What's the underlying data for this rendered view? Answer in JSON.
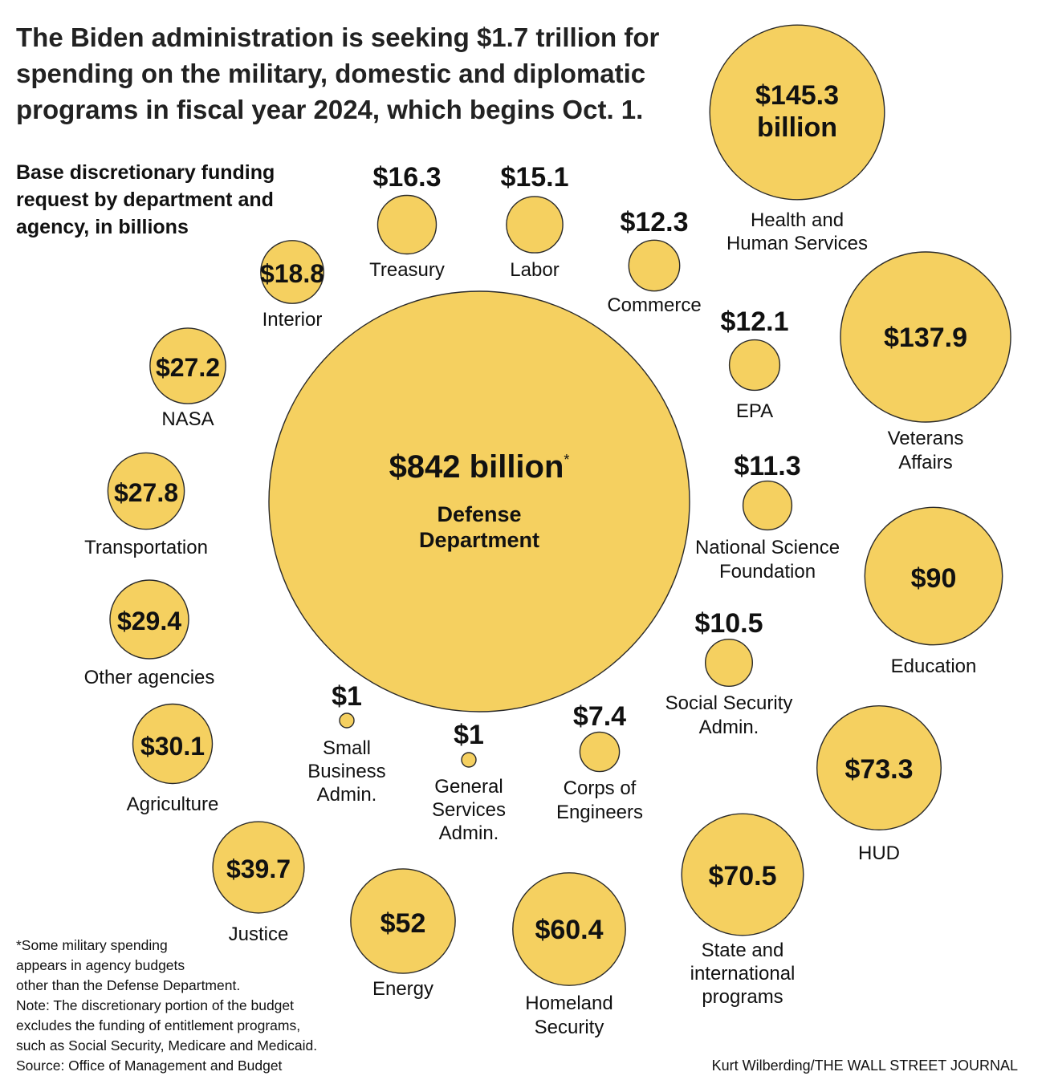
{
  "headline": "The Biden administration is seeking $1.7 trillion for spending on the military, domestic and diplomatic programs in fiscal year 2024, which begins Oct. 1.",
  "subhead": "Base discretionary funding request by department and agency, in billions",
  "footnote": [
    "*Some military spending",
    "appears in agency budgets",
    "other than the Defense Department.",
    "Note: The discretionary portion of the budget",
    "excludes the funding of entitlement programs,",
    "such as Social Security, Medicare and Medicaid.",
    "Source: Office of Management and Budget"
  ],
  "credit": "Kurt Wilberding/THE WALL STREET JOURNAL",
  "colors": {
    "bubble_fill": "#f5d060",
    "bubble_stroke": "#2a2a2a",
    "text": "#111111"
  },
  "chart_data": {
    "type": "bubble",
    "unit": "billions of dollars",
    "bubbles": [
      {
        "name": "Defense Department",
        "value": 842,
        "value_label": "$842 billion",
        "label_lines": [
          "Defense",
          "Department"
        ],
        "footnote_marker": "*"
      },
      {
        "name": "Health and Human Services",
        "value": 145.3,
        "value_label": "$145.3 billion",
        "label_lines": [
          "Health and",
          "Human Services"
        ]
      },
      {
        "name": "Veterans Affairs",
        "value": 137.9,
        "value_label": "$137.9",
        "label_lines": [
          "Veterans",
          "Affairs"
        ]
      },
      {
        "name": "Education",
        "value": 90,
        "value_label": "$90",
        "label_lines": [
          "Education"
        ]
      },
      {
        "name": "HUD",
        "value": 73.3,
        "value_label": "$73.3",
        "label_lines": [
          "HUD"
        ]
      },
      {
        "name": "State and international programs",
        "value": 70.5,
        "value_label": "$70.5",
        "label_lines": [
          "State and",
          "international",
          "programs"
        ]
      },
      {
        "name": "Homeland Security",
        "value": 60.4,
        "value_label": "$60.4",
        "label_lines": [
          "Homeland",
          "Security"
        ]
      },
      {
        "name": "Energy",
        "value": 52,
        "value_label": "$52",
        "label_lines": [
          "Energy"
        ]
      },
      {
        "name": "Justice",
        "value": 39.7,
        "value_label": "$39.7",
        "label_lines": [
          "Justice"
        ]
      },
      {
        "name": "Agriculture",
        "value": 30.1,
        "value_label": "$30.1",
        "label_lines": [
          "Agriculture"
        ]
      },
      {
        "name": "Other agencies",
        "value": 29.4,
        "value_label": "$29.4",
        "label_lines": [
          "Other agencies"
        ]
      },
      {
        "name": "Transportation",
        "value": 27.8,
        "value_label": "$27.8",
        "label_lines": [
          "Transportation"
        ]
      },
      {
        "name": "NASA",
        "value": 27.2,
        "value_label": "$27.2",
        "label_lines": [
          "NASA"
        ]
      },
      {
        "name": "Interior",
        "value": 18.8,
        "value_label": "$18.8",
        "label_lines": [
          "Interior"
        ]
      },
      {
        "name": "Treasury",
        "value": 16.3,
        "value_label": "$16.3",
        "label_lines": [
          "Treasury"
        ]
      },
      {
        "name": "Labor",
        "value": 15.1,
        "value_label": "$15.1",
        "label_lines": [
          "Labor"
        ]
      },
      {
        "name": "Commerce",
        "value": 12.3,
        "value_label": "$12.3",
        "label_lines": [
          "Commerce"
        ]
      },
      {
        "name": "EPA",
        "value": 12.1,
        "value_label": "$12.1",
        "label_lines": [
          "EPA"
        ]
      },
      {
        "name": "National Science Foundation",
        "value": 11.3,
        "value_label": "$11.3",
        "label_lines": [
          "National Science",
          "Foundation"
        ]
      },
      {
        "name": "Social Security Admin.",
        "value": 10.5,
        "value_label": "$10.5",
        "label_lines": [
          "Social Security",
          "Admin."
        ]
      },
      {
        "name": "Corps of Engineers",
        "value": 7.4,
        "value_label": "$7.4",
        "label_lines": [
          "Corps of",
          "Engineers"
        ]
      },
      {
        "name": "Small Business Admin.",
        "value": 1,
        "value_label": "$1",
        "label_lines": [
          "Small",
          "Business",
          "Admin."
        ]
      },
      {
        "name": "General Services Admin.",
        "value": 1,
        "value_label": "$1",
        "label_lines": [
          "General",
          "Services",
          "Admin."
        ]
      }
    ]
  }
}
